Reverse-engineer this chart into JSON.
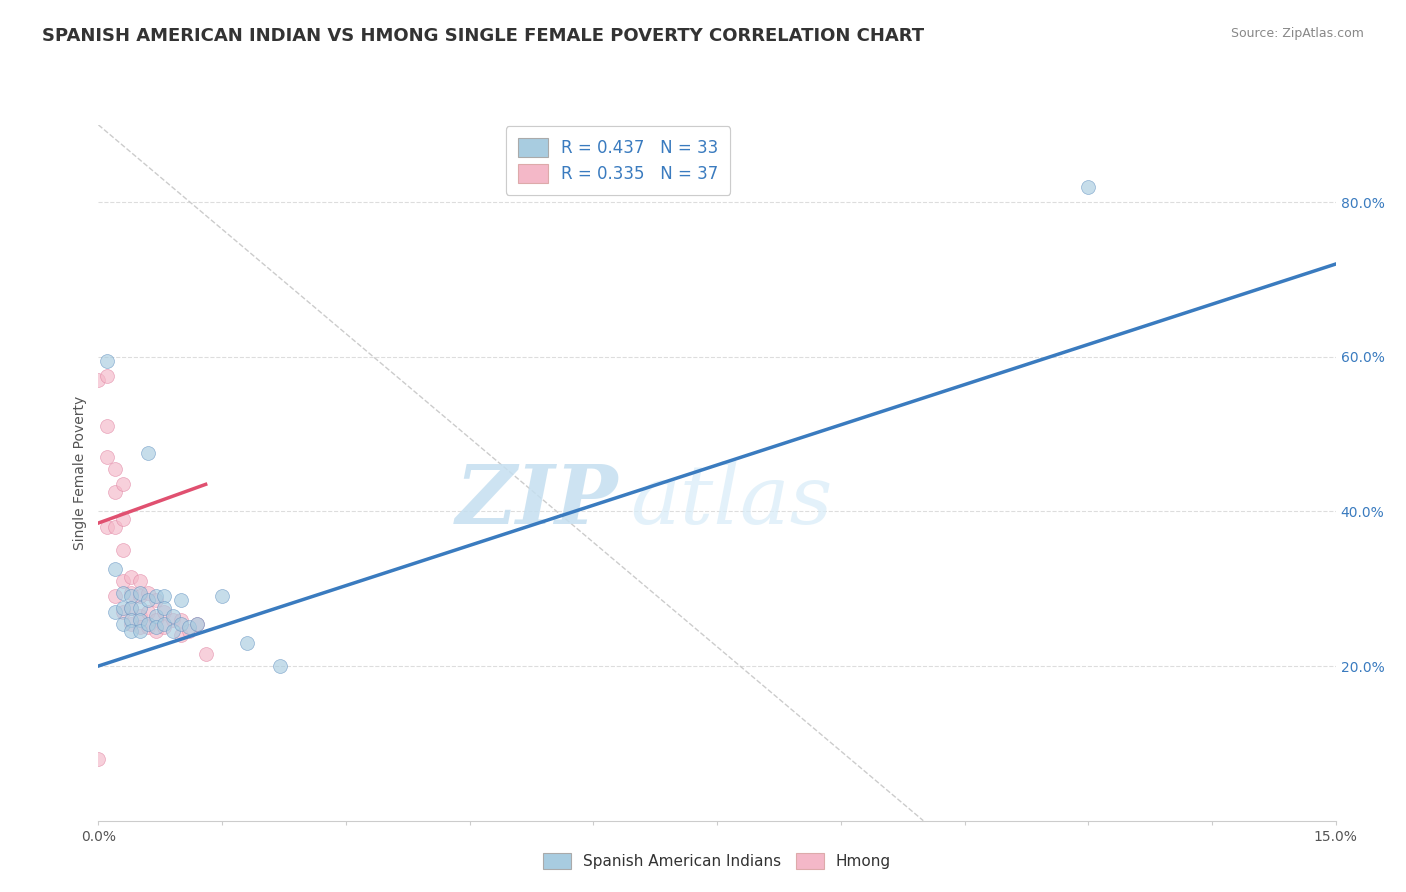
{
  "title": "SPANISH AMERICAN INDIAN VS HMONG SINGLE FEMALE POVERTY CORRELATION CHART",
  "source": "Source: ZipAtlas.com",
  "ylabel": "Single Female Poverty",
  "watermark_zip": "ZIP",
  "watermark_atlas": "atlas",
  "xlim": [
    0.0,
    0.15
  ],
  "ylim": [
    0.0,
    0.9
  ],
  "xticks": [
    0.0,
    0.015,
    0.03,
    0.045,
    0.06,
    0.075,
    0.09,
    0.105,
    0.12,
    0.135,
    0.15
  ],
  "xticklabels_show": [
    "0.0%",
    "",
    "",
    "",
    "",
    "",
    "",
    "",
    "",
    "",
    "15.0%"
  ],
  "yticks": [
    0.2,
    0.4,
    0.6,
    0.8
  ],
  "yticklabels": [
    "20.0%",
    "40.0%",
    "60.0%",
    "80.0%"
  ],
  "legend_label1": "Spanish American Indians",
  "legend_label2": "Hmong",
  "color_blue": "#a8cce0",
  "color_pink": "#f4b8c8",
  "color_blue_line": "#3a7bbf",
  "color_pink_line": "#e05070",
  "color_diag": "#cccccc",
  "title_fontsize": 13,
  "axis_label_fontsize": 10,
  "tick_fontsize": 10,
  "background_color": "#ffffff",
  "scatter_alpha": 0.65,
  "scatter_size": 100,
  "blue_scatter_x": [
    0.001,
    0.002,
    0.002,
    0.003,
    0.003,
    0.003,
    0.004,
    0.004,
    0.004,
    0.004,
    0.005,
    0.005,
    0.005,
    0.005,
    0.006,
    0.006,
    0.006,
    0.007,
    0.007,
    0.007,
    0.008,
    0.008,
    0.008,
    0.009,
    0.009,
    0.01,
    0.01,
    0.011,
    0.012,
    0.015,
    0.018,
    0.022,
    0.12
  ],
  "blue_scatter_y": [
    0.595,
    0.325,
    0.27,
    0.295,
    0.275,
    0.255,
    0.29,
    0.275,
    0.26,
    0.245,
    0.295,
    0.275,
    0.26,
    0.245,
    0.475,
    0.285,
    0.255,
    0.29,
    0.265,
    0.25,
    0.29,
    0.275,
    0.255,
    0.265,
    0.245,
    0.285,
    0.255,
    0.25,
    0.255,
    0.29,
    0.23,
    0.2,
    0.82
  ],
  "pink_scatter_x": [
    0.0,
    0.0,
    0.001,
    0.001,
    0.001,
    0.001,
    0.002,
    0.002,
    0.002,
    0.002,
    0.003,
    0.003,
    0.003,
    0.003,
    0.003,
    0.004,
    0.004,
    0.004,
    0.004,
    0.005,
    0.005,
    0.005,
    0.005,
    0.006,
    0.006,
    0.006,
    0.007,
    0.007,
    0.007,
    0.008,
    0.008,
    0.009,
    0.01,
    0.01,
    0.011,
    0.012,
    0.013
  ],
  "pink_scatter_y": [
    0.08,
    0.57,
    0.575,
    0.51,
    0.47,
    0.38,
    0.455,
    0.425,
    0.38,
    0.29,
    0.435,
    0.39,
    0.35,
    0.31,
    0.27,
    0.315,
    0.295,
    0.275,
    0.255,
    0.31,
    0.29,
    0.265,
    0.25,
    0.295,
    0.27,
    0.25,
    0.285,
    0.26,
    0.245,
    0.27,
    0.25,
    0.26,
    0.26,
    0.24,
    0.245,
    0.255,
    0.215
  ],
  "blue_line_x": [
    0.0,
    0.15
  ],
  "blue_line_y": [
    0.2,
    0.72
  ],
  "pink_line_x": [
    0.0,
    0.013
  ],
  "pink_line_y": [
    0.385,
    0.435
  ]
}
